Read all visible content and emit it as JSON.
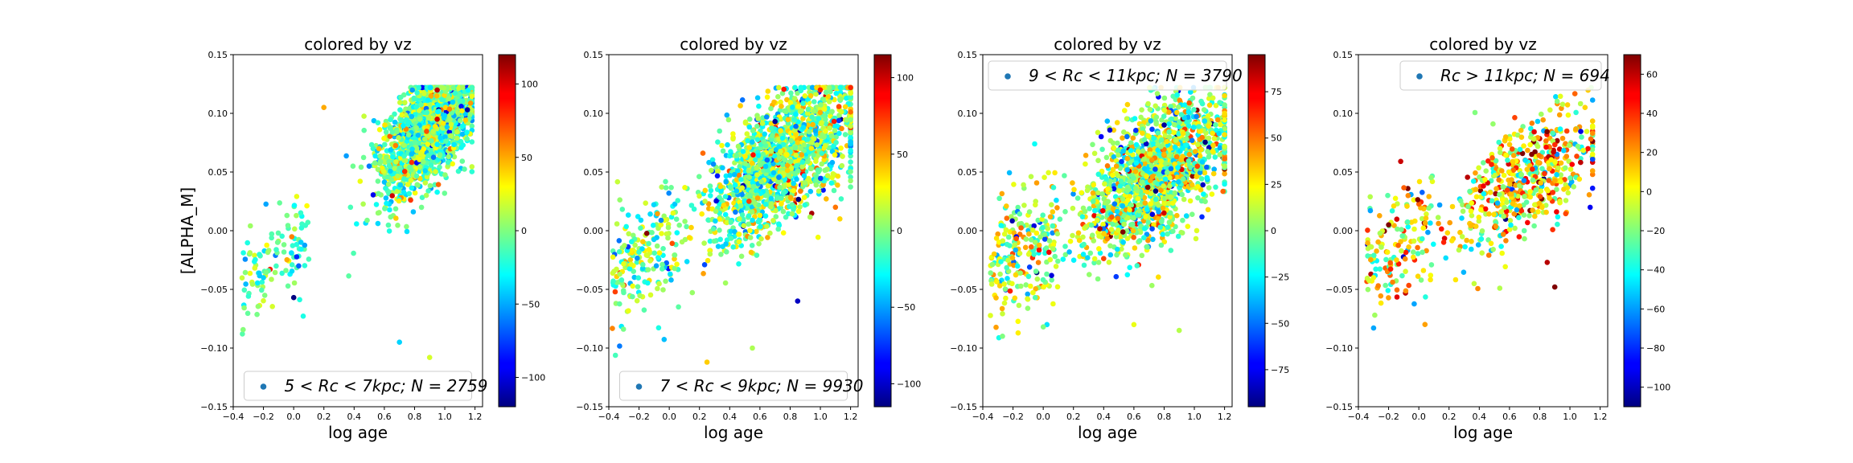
{
  "figure": {
    "ylabel": "[ALPHA_M]",
    "xlabel": "log age",
    "colormap": "jet"
  },
  "chart_data": [
    {
      "type": "scatter",
      "title": "colored by vz",
      "xlabel": "log age",
      "ylabel": "[ALPHA_M]",
      "xlim": [
        -0.4,
        1.25
      ],
      "ylim": [
        -0.15,
        0.15
      ],
      "xticks": [
        "−0.4",
        "−0.2",
        "0.0",
        "0.2",
        "0.4",
        "0.6",
        "0.8",
        "1.0",
        "1.2"
      ],
      "yticks": [
        "−0.15",
        "−0.10",
        "−0.05",
        "0.00",
        "0.05",
        "0.10",
        "0.15"
      ],
      "legend": {
        "label": "5 < Rc < 7kpc;  N = 2759",
        "loc": "lower center",
        "marker_color": "#1f77b4"
      },
      "colorbar": {
        "label": "",
        "range": [
          -120,
          120
        ],
        "ticks": [
          100,
          50,
          0,
          -50,
          -100
        ],
        "tick_labels": [
          "100",
          "50",
          "0",
          "−50",
          "−100"
        ]
      },
      "N": 2759,
      "distribution": {
        "x_center": 0.9,
        "x_spread": 0.17,
        "x_min": -0.35,
        "x_max": 1.18,
        "slope": 0.11,
        "y_spread": 0.022,
        "young_fraction": 0.06,
        "vz_mean": -5,
        "vz_std": 24
      },
      "sample_points": [
        {
          "x": -0.2,
          "y": -0.04,
          "vz": -40
        },
        {
          "x": 0.0,
          "y": -0.057,
          "vz": -120
        },
        {
          "x": 0.2,
          "y": 0.105,
          "vz": 50
        },
        {
          "x": 0.7,
          "y": -0.095,
          "vz": -40
        },
        {
          "x": 0.95,
          "y": 0.095,
          "vz": 100
        },
        {
          "x": 1.15,
          "y": 0.103,
          "vz": -110
        },
        {
          "x": 0.9,
          "y": -0.108,
          "vz": 20
        }
      ]
    },
    {
      "type": "scatter",
      "title": "colored by vz",
      "xlabel": "log age",
      "ylabel": "",
      "xlim": [
        -0.4,
        1.25
      ],
      "ylim": [
        -0.15,
        0.15
      ],
      "xticks": [
        "−0.4",
        "−0.2",
        "0.0",
        "0.2",
        "0.4",
        "0.6",
        "0.8",
        "1.0",
        "1.2"
      ],
      "yticks": [
        "−0.15",
        "−0.10",
        "−0.05",
        "0.00",
        "0.05",
        "0.10",
        "0.15"
      ],
      "legend": {
        "label": "7 < Rc < 9kpc;  N = 9930",
        "loc": "lower center",
        "marker_color": "#1f77b4"
      },
      "colorbar": {
        "label": "",
        "range": [
          -115,
          115
        ],
        "ticks": [
          100,
          50,
          0,
          -50,
          -100
        ],
        "tick_labels": [
          "100",
          "50",
          "0",
          "−50",
          "−100"
        ]
      },
      "N": 9930,
      "distribution": {
        "x_center": 0.75,
        "x_spread": 0.25,
        "x_min": -0.38,
        "x_max": 1.2,
        "slope": 0.09,
        "y_spread": 0.026,
        "young_fraction": 0.12,
        "vz_mean": 0,
        "vz_std": 28
      },
      "sample_points": [
        {
          "x": 0.25,
          "y": -0.112,
          "vz": 40
        },
        {
          "x": 0.55,
          "y": -0.1,
          "vz": 10
        },
        {
          "x": 0.85,
          "y": -0.06,
          "vz": -100
        },
        {
          "x": 1.0,
          "y": 0.12,
          "vz": 80
        },
        {
          "x": 1.1,
          "y": 0.02,
          "vz": 60
        },
        {
          "x": 0.7,
          "y": 0.093,
          "vz": -110
        }
      ]
    },
    {
      "type": "scatter",
      "title": "colored by vz",
      "xlabel": "log age",
      "ylabel": "",
      "xlim": [
        -0.4,
        1.25
      ],
      "ylim": [
        -0.15,
        0.15
      ],
      "xticks": [
        "−0.4",
        "−0.2",
        "0.0",
        "0.2",
        "0.4",
        "0.6",
        "0.8",
        "1.0",
        "1.2"
      ],
      "yticks": [
        "−0.15",
        "−0.10",
        "−0.05",
        "0.00",
        "0.05",
        "0.10",
        "0.15"
      ],
      "legend": {
        "label": "9 < Rc < 11kpc;  N = 3790",
        "loc": "upper center",
        "marker_color": "#1f77b4"
      },
      "colorbar": {
        "label": "",
        "range": [
          -95,
          95
        ],
        "ticks": [
          75,
          50,
          25,
          0,
          -25,
          -50,
          -75
        ],
        "tick_labels": [
          "75",
          "50",
          "25",
          "0",
          "−25",
          "−50",
          "−75"
        ]
      },
      "N": 3790,
      "distribution": {
        "x_center": 0.75,
        "x_spread": 0.25,
        "x_min": -0.35,
        "x_max": 1.2,
        "slope": 0.075,
        "y_spread": 0.027,
        "young_fraction": 0.12,
        "vz_mean": 5,
        "vz_std": 26
      },
      "sample_points": [
        {
          "x": 0.0,
          "y": -0.082,
          "vz": 0
        },
        {
          "x": 0.6,
          "y": -0.08,
          "vz": 20
        },
        {
          "x": 0.9,
          "y": -0.085,
          "vz": 10
        },
        {
          "x": 1.2,
          "y": 0.1,
          "vz": 30
        },
        {
          "x": 0.8,
          "y": 0.09,
          "vz": -90
        }
      ]
    },
    {
      "type": "scatter",
      "title": "colored by vz",
      "xlabel": "log age",
      "ylabel": "",
      "xlim": [
        -0.4,
        1.25
      ],
      "ylim": [
        -0.15,
        0.15
      ],
      "xticks": [
        "−0.4",
        "−0.2",
        "0.0",
        "0.2",
        "0.4",
        "0.6",
        "0.8",
        "1.0",
        "1.2"
      ],
      "yticks": [
        "−0.15",
        "−0.10",
        "−0.05",
        "0.00",
        "0.05",
        "0.10",
        "0.15"
      ],
      "legend": {
        "label": "Rc > 11kpc;  N = 694",
        "loc": "upper right",
        "marker_color": "#1f77b4"
      },
      "colorbar": {
        "label": "",
        "range": [
          -110,
          70
        ],
        "ticks": [
          60,
          40,
          20,
          0,
          -20,
          -40,
          -60,
          -80,
          -100
        ],
        "tick_labels": [
          "60",
          "40",
          "20",
          "0",
          "−20",
          "−40",
          "−60",
          "−80",
          "−100"
        ]
      },
      "N": 694,
      "distribution": {
        "x_center": 0.7,
        "x_spread": 0.25,
        "x_min": -0.35,
        "x_max": 1.15,
        "slope": 0.07,
        "y_spread": 0.025,
        "young_fraction": 0.2,
        "vz_mean": 0,
        "vz_std": 30
      },
      "sample_points": [
        {
          "x": 0.9,
          "y": -0.048,
          "vz": 70
        },
        {
          "x": 0.85,
          "y": -0.027,
          "vz": 60
        },
        {
          "x": -0.3,
          "y": -0.04,
          "vz": 0
        },
        {
          "x": 1.1,
          "y": 0.105,
          "vz": 10
        },
        {
          "x": -0.2,
          "y": 0.005,
          "vz": 70
        }
      ]
    }
  ]
}
